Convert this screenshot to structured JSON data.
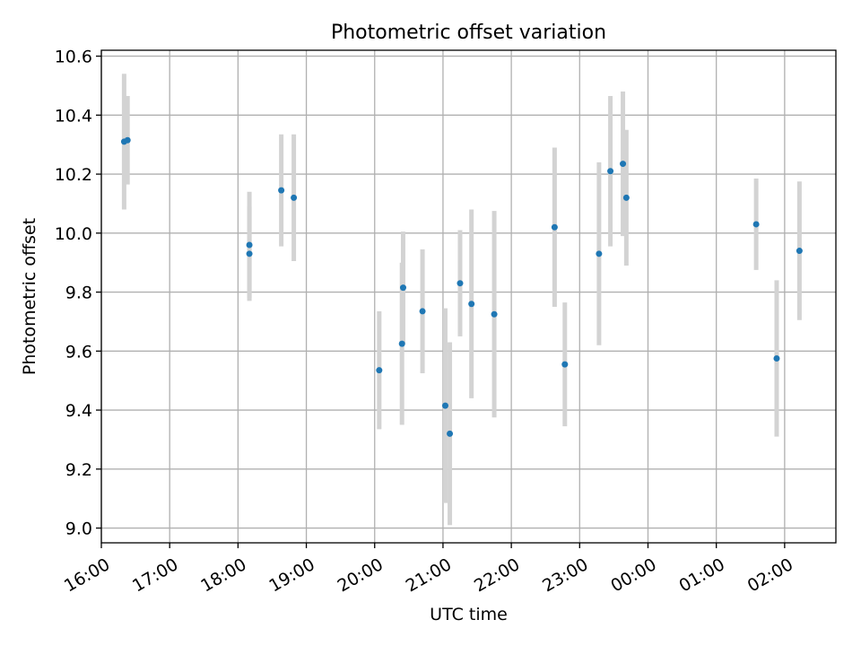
{
  "chart_data": {
    "type": "scatter",
    "title": "Photometric offset variation",
    "xlabel": "UTC time",
    "ylabel": "Photometric offset",
    "x_is_time": true,
    "xlim": [
      "16:00",
      "02:45"
    ],
    "ylim": [
      8.95,
      10.62
    ],
    "grid": true,
    "x_ticks": [
      "16:00",
      "17:00",
      "18:00",
      "19:00",
      "20:00",
      "21:00",
      "22:00",
      "23:00",
      "00:00",
      "01:00",
      "02:00"
    ],
    "y_ticks": [
      "9.0",
      "9.2",
      "9.4",
      "9.6",
      "9.8",
      "10.0",
      "10.2",
      "10.4",
      "10.6"
    ],
    "colors": {
      "point": "#1f77b4",
      "errorbar": "#d3d3d3",
      "grid": "#b0b0b0"
    },
    "points": [
      {
        "time": "16:20",
        "y": 10.31,
        "yerr": 0.23
      },
      {
        "time": "16:23",
        "y": 10.315,
        "yerr": 0.15
      },
      {
        "time": "18:10",
        "y": 9.93,
        "yerr": 0.16
      },
      {
        "time": "18:10",
        "y": 9.96,
        "yerr": 0.18
      },
      {
        "time": "18:38",
        "y": 10.145,
        "yerr": 0.19
      },
      {
        "time": "18:49",
        "y": 10.12,
        "yerr": 0.215
      },
      {
        "time": "20:04",
        "y": 9.535,
        "yerr": 0.2
      },
      {
        "time": "20:24",
        "y": 9.625,
        "yerr": 0.275
      },
      {
        "time": "20:25",
        "y": 9.815,
        "yerr": 0.19
      },
      {
        "time": "20:42",
        "y": 9.735,
        "yerr": 0.21
      },
      {
        "time": "21:02",
        "y": 9.415,
        "yerr": 0.33
      },
      {
        "time": "21:06",
        "y": 9.32,
        "yerr": 0.31
      },
      {
        "time": "21:15",
        "y": 9.83,
        "yerr": 0.18
      },
      {
        "time": "21:25",
        "y": 9.76,
        "yerr": 0.32
      },
      {
        "time": "21:45",
        "y": 9.725,
        "yerr": 0.35
      },
      {
        "time": "22:38",
        "y": 10.02,
        "yerr": 0.27
      },
      {
        "time": "22:47",
        "y": 9.555,
        "yerr": 0.21
      },
      {
        "time": "23:17",
        "y": 9.93,
        "yerr": 0.31
      },
      {
        "time": "23:27",
        "y": 10.21,
        "yerr": 0.255
      },
      {
        "time": "23:38",
        "y": 10.235,
        "yerr": 0.245
      },
      {
        "time": "23:41",
        "y": 10.12,
        "yerr": 0.23
      },
      {
        "time": "01:35",
        "y": 10.03,
        "yerr": 0.155
      },
      {
        "time": "01:53",
        "y": 9.575,
        "yerr": 0.265
      },
      {
        "time": "02:13",
        "y": 9.94,
        "yerr": 0.235
      }
    ]
  }
}
